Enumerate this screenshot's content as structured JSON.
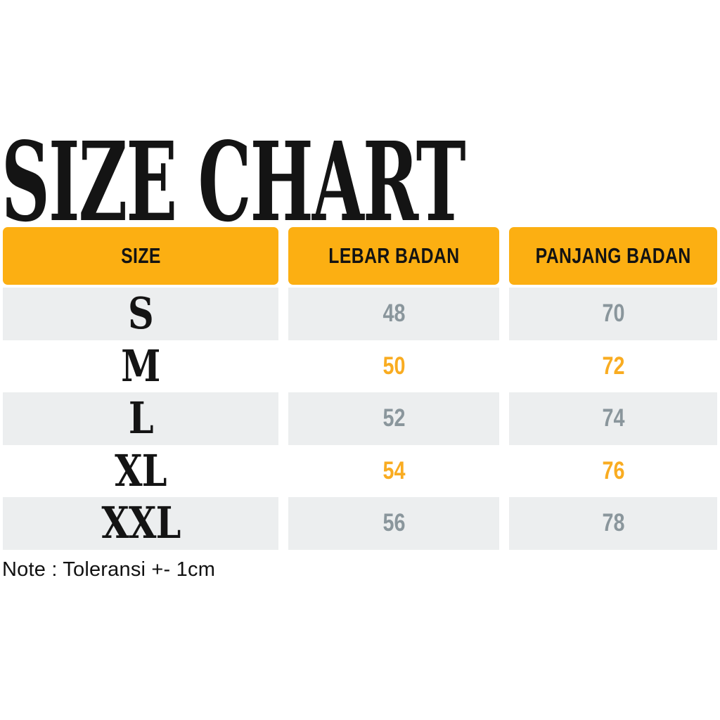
{
  "title": "SIZE CHART",
  "note": "Note : Toleransi +- 1cm",
  "colors": {
    "header_orange": "#FCAF12",
    "value_orange": "#F9AC21",
    "row_shaded_gray": "#ECEEEF",
    "value_gray": "#8A969C",
    "text_black": "#141414",
    "background": "#FFFFFF"
  },
  "chart_data": {
    "type": "table",
    "title": "SIZE CHART",
    "columns": [
      "SIZE",
      "LEBAR BADAN",
      "PANJANG BADAN"
    ],
    "rows": [
      [
        "S",
        48,
        70
      ],
      [
        "M",
        50,
        72
      ],
      [
        "L",
        52,
        74
      ],
      [
        "XL",
        54,
        76
      ],
      [
        "XXL",
        56,
        78
      ]
    ],
    "row_shading": [
      "shaded",
      "plain",
      "shaded",
      "plain",
      "shaded"
    ],
    "units": "cm",
    "note": "Note : Toleransi +- 1cm"
  }
}
